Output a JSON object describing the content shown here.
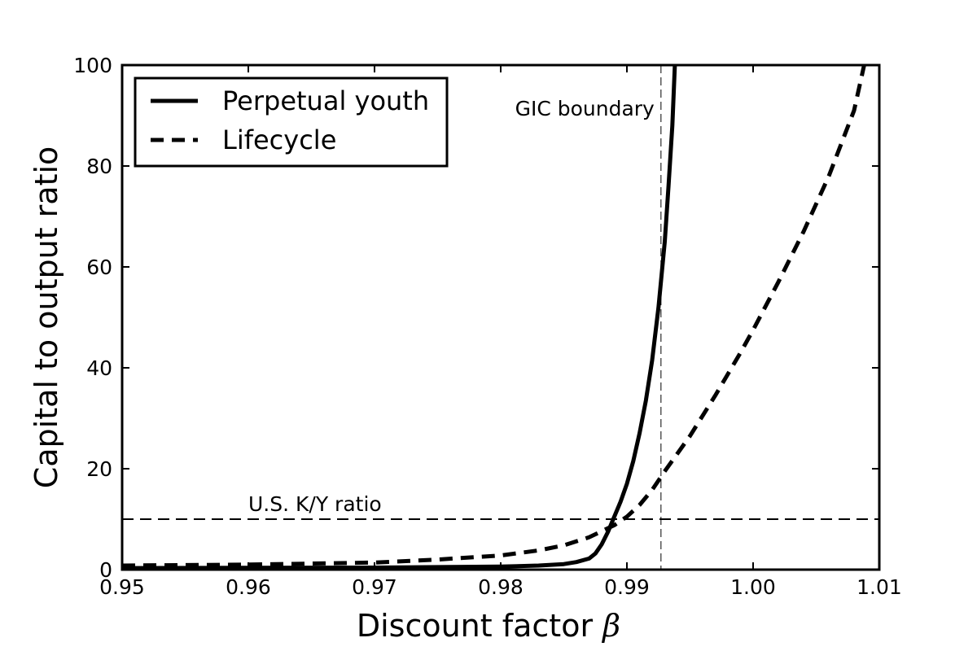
{
  "chart_data": {
    "type": "line",
    "xlabel": "Discount factor",
    "xlabel_symbol": "β",
    "ylabel": "Capital to output ratio",
    "xlim": [
      0.95,
      1.01
    ],
    "ylim": [
      0,
      100
    ],
    "x_ticks": [
      0.95,
      0.96,
      0.97,
      0.98,
      0.99,
      1.0,
      1.01
    ],
    "x_tick_labels": [
      "0.95",
      "0.96",
      "0.97",
      "0.98",
      "0.99",
      "1.00",
      "1.01"
    ],
    "y_ticks": [
      0,
      20,
      40,
      60,
      80,
      100
    ],
    "y_tick_labels": [
      "0",
      "20",
      "40",
      "60",
      "80",
      "100"
    ],
    "legend": {
      "placement": "top-left",
      "entries": [
        {
          "label": "Perpetual youth",
          "style": "solid"
        },
        {
          "label": "Lifecycle",
          "style": "dashed"
        }
      ]
    },
    "series": [
      {
        "name": "Perpetual youth",
        "style": "solid",
        "x": [
          0.95,
          0.96,
          0.97,
          0.975,
          0.98,
          0.983,
          0.985,
          0.986,
          0.987,
          0.9875,
          0.988,
          0.9885,
          0.989,
          0.9895,
          0.99,
          0.9905,
          0.991,
          0.9915,
          0.992,
          0.9925,
          0.993,
          0.9933,
          0.9936,
          0.9938
        ],
        "y": [
          0.3,
          0.35,
          0.4,
          0.5,
          0.6,
          0.8,
          1.1,
          1.5,
          2.2,
          3.2,
          5,
          7.5,
          10.5,
          13.5,
          17,
          21.5,
          27,
          33.5,
          41.5,
          52,
          65,
          76,
          88,
          100
        ]
      },
      {
        "name": "Lifecycle",
        "style": "dashed",
        "x": [
          0.95,
          0.96,
          0.97,
          0.975,
          0.98,
          0.983,
          0.985,
          0.987,
          0.989,
          0.99,
          0.991,
          0.992,
          0.993,
          0.995,
          0.997,
          0.999,
          1.0,
          1.002,
          1.004,
          1.006,
          1.008,
          1.0088
        ],
        "y": [
          0.8,
          1.0,
          1.4,
          2.0,
          2.8,
          3.8,
          4.8,
          6.4,
          8.8,
          10.5,
          12.8,
          15.8,
          19.5,
          26.5,
          34.5,
          43.0,
          47.5,
          57.0,
          67.0,
          78.0,
          91.0,
          100.0
        ]
      }
    ],
    "reference_lines": [
      {
        "orientation": "horizontal",
        "value": 10,
        "label": "U.S. K/Y ratio"
      },
      {
        "orientation": "vertical",
        "value": 0.9927,
        "label": "GIC boundary"
      }
    ]
  }
}
